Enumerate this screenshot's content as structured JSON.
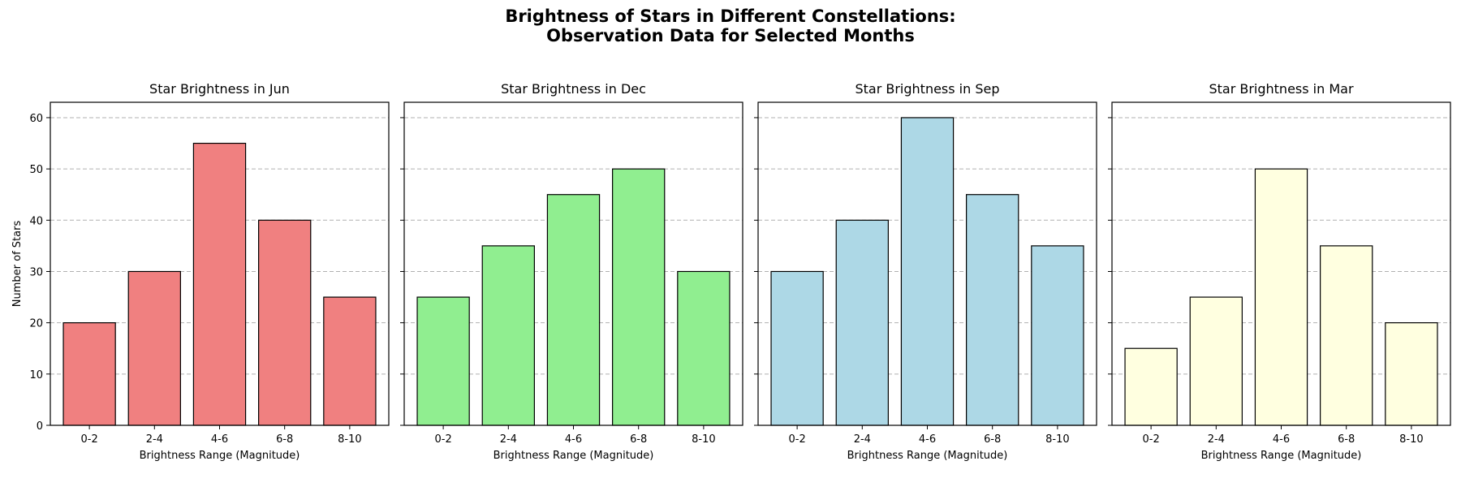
{
  "figure": {
    "title_lines": [
      "Brightness of Stars in Different Constellations:",
      "Observation Data for Selected Months"
    ],
    "ylabel": "Number of Stars",
    "xlabel": "Brightness Range (Magnitude)",
    "grid": "y-dashed",
    "bar_edge_color": "#000000"
  },
  "chart_data": [
    {
      "type": "bar",
      "title": "Star Brightness in Jun",
      "xlabel": "Brightness Range (Magnitude)",
      "ylabel": "Number of Stars",
      "categories": [
        "0-2",
        "2-4",
        "4-6",
        "6-8",
        "8-10"
      ],
      "values": [
        20,
        30,
        55,
        40,
        25
      ],
      "color": "#f08080",
      "ylim": [
        0,
        63
      ],
      "yticks": [
        0,
        10,
        20,
        30,
        40,
        50,
        60
      ]
    },
    {
      "type": "bar",
      "title": "Star Brightness in Dec",
      "xlabel": "Brightness Range (Magnitude)",
      "categories": [
        "0-2",
        "2-4",
        "4-6",
        "6-8",
        "8-10"
      ],
      "values": [
        25,
        35,
        45,
        50,
        30
      ],
      "color": "#90ee90",
      "ylim": [
        0,
        63
      ]
    },
    {
      "type": "bar",
      "title": "Star Brightness in Sep",
      "xlabel": "Brightness Range (Magnitude)",
      "categories": [
        "0-2",
        "2-4",
        "4-6",
        "6-8",
        "8-10"
      ],
      "values": [
        30,
        40,
        60,
        45,
        35
      ],
      "color": "#add8e6",
      "ylim": [
        0,
        63
      ]
    },
    {
      "type": "bar",
      "title": "Star Brightness in Mar",
      "xlabel": "Brightness Range (Magnitude)",
      "categories": [
        "0-2",
        "2-4",
        "4-6",
        "6-8",
        "8-10"
      ],
      "values": [
        15,
        25,
        50,
        35,
        20
      ],
      "color": "#ffffe0",
      "ylim": [
        0,
        63
      ]
    }
  ]
}
